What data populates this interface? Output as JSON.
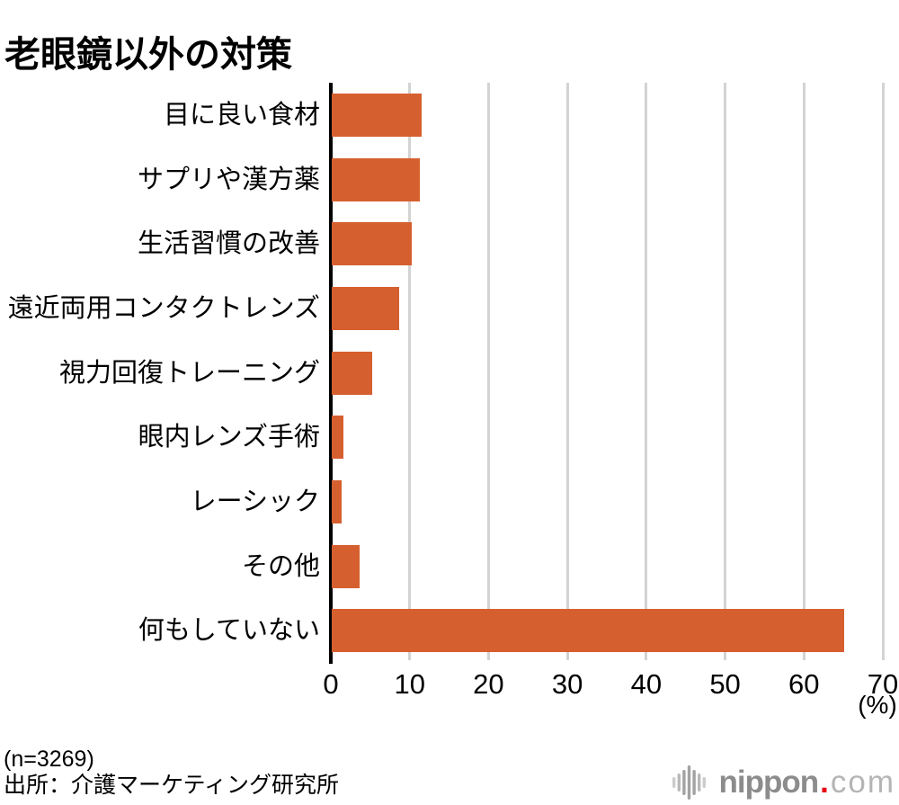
{
  "title": "老眼鏡以外の対策",
  "chart_data": {
    "type": "bar",
    "orientation": "horizontal",
    "title": "老眼鏡以外の対策",
    "categories": [
      "目に良い食材",
      "サプリや漢方薬",
      "生活習慣の改善",
      "遠近両用コンタクトレンズ",
      "視力回復トレーニング",
      "眼内レンズ手術",
      "レーシック",
      "その他",
      "何もしていない"
    ],
    "values": [
      11.4,
      11.2,
      10.2,
      8.5,
      5.1,
      1.5,
      1.2,
      3.5,
      65.0
    ],
    "xlabel": "",
    "ylabel": "",
    "xlim": [
      0,
      70
    ],
    "x_ticks": [
      0,
      10,
      20,
      30,
      40,
      50,
      60,
      70
    ],
    "unit_label": "(%)",
    "bar_color": "#d65f2f",
    "grid": true,
    "legend_position": "none"
  },
  "footer": {
    "sample_note": "(n=3269)",
    "source": "出所：介護マーケティング研究所"
  },
  "logo": {
    "brand": "nippon",
    "dot": ".",
    "suffix": "com",
    "icon": "soundwave-icon",
    "brand_color": "#8c8c8c",
    "suffix_color": "#b5b5b5",
    "dot_color": "#e60012",
    "icon_color": "#a2a2a2"
  }
}
